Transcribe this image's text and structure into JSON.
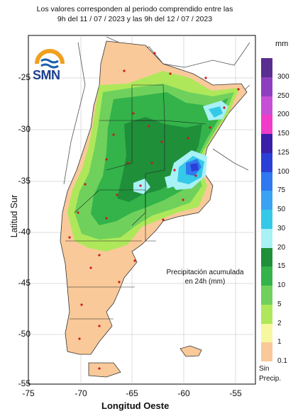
{
  "header": {
    "line1": "Los valores corresponden al periodo comprendido entre las",
    "line2": "9h del 11 / 07 / 2023  y las 9h del 12 / 07 / 2023"
  },
  "logo": {
    "text": "SMN",
    "icon": "smn-sun-waves-logo"
  },
  "map": {
    "note_line1": "Precipitación acumulada",
    "note_line2": "en 24h (mm)",
    "xlabel": "Longitud Oeste",
    "ylabel": "Latitud Sur",
    "x_ticks": [
      "-75",
      "-70",
      "-65",
      "-60",
      "-55"
    ],
    "y_ticks": [
      "-25",
      "-30",
      "-35",
      "-40",
      "-45",
      "-50",
      "-55"
    ]
  },
  "legend": {
    "unit": "mm",
    "labels": [
      "300",
      "250",
      "200",
      "150",
      "125",
      "100",
      "75",
      "50",
      "30",
      "20",
      "15",
      "10",
      "5",
      "2",
      "1",
      "0.1"
    ],
    "colors": [
      "#5a2d91",
      "#8e3fbf",
      "#c64fd6",
      "#f03cc8",
      "#3a1fa8",
      "#2a3fd6",
      "#2f78f0",
      "#3aa2f2",
      "#35c9e8",
      "#a8f1f5",
      "#1f8f3a",
      "#33b34a",
      "#6fd15c",
      "#aee85a",
      "#f7f7a0",
      "#f9c99a"
    ],
    "no_precip_line1": "Sin",
    "no_precip_line2": "Precip."
  }
}
